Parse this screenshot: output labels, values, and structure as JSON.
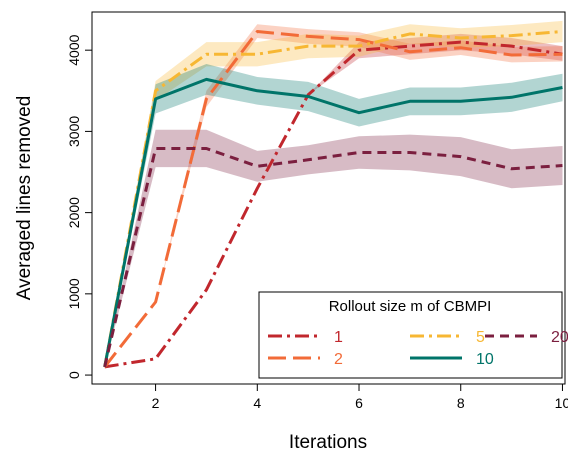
{
  "chart_data": {
    "type": "line",
    "xlabel": "Iterations",
    "ylabel": "Averaged lines removed",
    "xlim": [
      0.75,
      10.05
    ],
    "ylim": [
      -110,
      4470
    ],
    "x": [
      1,
      2,
      3,
      4,
      5,
      6,
      7,
      8,
      9,
      10
    ],
    "xticks": [
      2,
      4,
      6,
      8,
      10
    ],
    "yticks": [
      0,
      1000,
      2000,
      3000,
      4000
    ],
    "grid": false,
    "legend": {
      "title": "Rollout size m of CBMPI",
      "placement": "bottom-right"
    },
    "series": [
      {
        "name": "1",
        "color": "#c1272d",
        "dash": "dash-dot",
        "values": [
          100,
          200,
          1050,
          2300,
          3450,
          4000,
          4050,
          4100,
          4050,
          3950
        ],
        "lower": [
          100,
          200,
          1050,
          2300,
          3450,
          3900,
          3950,
          4000,
          3950,
          3870
        ],
        "upper": [
          100,
          200,
          1050,
          2300,
          3450,
          4100,
          4150,
          4200,
          4150,
          4050
        ]
      },
      {
        "name": "2",
        "color": "#f26b38",
        "dash": "long-dash",
        "values": [
          100,
          900,
          3400,
          4230,
          4170,
          4130,
          3980,
          4030,
          3940,
          3950
        ],
        "lower": [
          100,
          900,
          3300,
          4150,
          4080,
          4040,
          3880,
          3940,
          3850,
          3860
        ],
        "upper": [
          100,
          900,
          3500,
          4320,
          4260,
          4220,
          4080,
          4120,
          4040,
          4050
        ]
      },
      {
        "name": "5",
        "color": "#f7b733",
        "dash": "dash-dot-long",
        "values": [
          100,
          3500,
          3950,
          3950,
          4050,
          4050,
          4200,
          4150,
          4180,
          4230
        ],
        "lower": [
          100,
          3380,
          3800,
          3800,
          3900,
          3920,
          4080,
          4030,
          4050,
          4100
        ],
        "upper": [
          100,
          3620,
          4100,
          4100,
          4200,
          4180,
          4320,
          4270,
          4310,
          4360
        ]
      },
      {
        "name": "10",
        "color": "#007469",
        "dash": "solid",
        "values": [
          100,
          3400,
          3640,
          3500,
          3430,
          3230,
          3370,
          3370,
          3420,
          3540
        ],
        "lower": [
          100,
          3220,
          3450,
          3330,
          3250,
          3060,
          3200,
          3200,
          3240,
          3370
        ],
        "upper": [
          100,
          3580,
          3830,
          3670,
          3610,
          3400,
          3540,
          3540,
          3600,
          3710
        ]
      },
      {
        "name": "20",
        "color": "#7b1f3f",
        "dash": "short-dash",
        "values": [
          100,
          2790,
          2790,
          2570,
          2650,
          2740,
          2740,
          2690,
          2540,
          2580
        ],
        "lower": [
          100,
          2560,
          2560,
          2380,
          2470,
          2540,
          2520,
          2450,
          2300,
          2340
        ],
        "upper": [
          100,
          3020,
          3020,
          2760,
          2830,
          2940,
          2960,
          2930,
          2780,
          2820
        ]
      }
    ]
  }
}
